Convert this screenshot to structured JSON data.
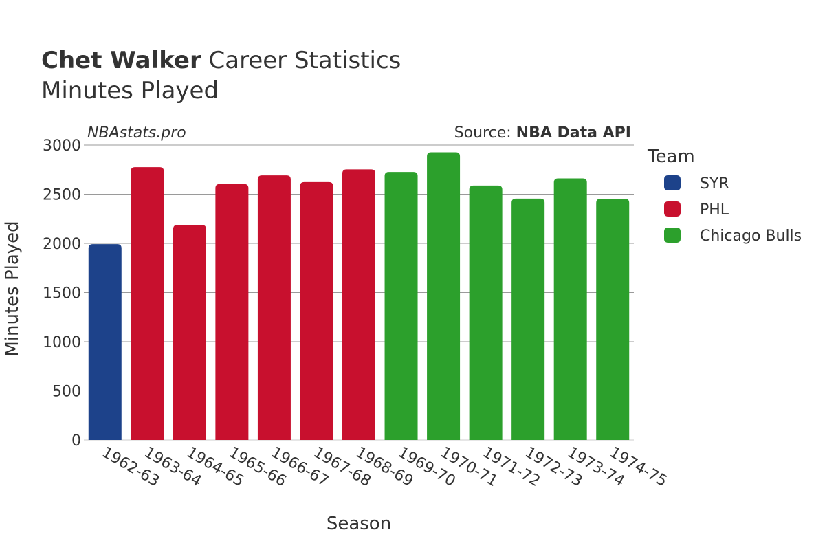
{
  "header": {
    "player_name": "Chet Walker",
    "title_suffix": " Career Statistics",
    "subtitle": "Minutes Played"
  },
  "watermark": "NBAstats.pro",
  "source": {
    "label": "Source: ",
    "name": "NBA Data API"
  },
  "legend": {
    "title": "Team",
    "items": [
      {
        "label": "SYR",
        "color": "#1d428a"
      },
      {
        "label": "PHL",
        "color": "#c8102e"
      },
      {
        "label": "Chicago Bulls",
        "color": "#2ca02c"
      }
    ]
  },
  "chart_data": {
    "type": "bar",
    "xlabel": "Season",
    "ylabel": "Minutes Played",
    "ylim": [
      0,
      3000
    ],
    "yticks": [
      0,
      500,
      1000,
      1500,
      2000,
      2500,
      3000
    ],
    "grid": true,
    "legend_position": "right",
    "categories": [
      "1962-63",
      "1963-64",
      "1964-65",
      "1965-66",
      "1966-67",
      "1967-68",
      "1968-69",
      "1969-70",
      "1970-71",
      "1971-72",
      "1972-73",
      "1973-74",
      "1974-75"
    ],
    "values": [
      1992,
      2775,
      2187,
      2603,
      2691,
      2623,
      2753,
      2726,
      2927,
      2588,
      2455,
      2661,
      2454
    ],
    "teams": [
      "SYR",
      "PHL",
      "PHL",
      "PHL",
      "PHL",
      "PHL",
      "PHL",
      "Chicago Bulls",
      "Chicago Bulls",
      "Chicago Bulls",
      "Chicago Bulls",
      "Chicago Bulls",
      "Chicago Bulls"
    ],
    "colors": {
      "SYR": "#1d428a",
      "PHL": "#c8102e",
      "Chicago Bulls": "#2ca02c"
    }
  }
}
